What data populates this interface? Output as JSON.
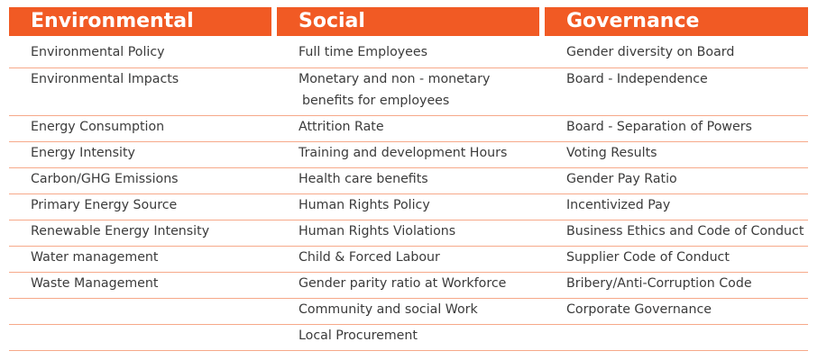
{
  "headers": {
    "environmental": "Environmental",
    "social": "Social",
    "governance": "Governance"
  },
  "rows": [
    {
      "env": "Environmental Policy",
      "soc": "Full time Employees",
      "soc2": "",
      "gov": "Gender diversity on  Board"
    },
    {
      "env": "Environmental Impacts",
      "soc": "Monetary and non - monetary",
      "soc2": "benefits for employees",
      "gov": "Board - Independence"
    },
    {
      "env": "Energy Consumption",
      "soc": "Attrition Rate",
      "soc2": "",
      "gov": "Board - Separation of Powers"
    },
    {
      "env": "Energy Intensity",
      "soc": "Training and development  Hours",
      "soc2": "",
      "gov": "Voting Results"
    },
    {
      "env": "Carbon/GHG Emissions",
      "soc": "Health care benefits",
      "soc2": "",
      "gov": "Gender Pay Ratio"
    },
    {
      "env": "Primary Energy Source",
      "soc": "Human Rights Policy",
      "soc2": "",
      "gov": "Incentivized Pay"
    },
    {
      "env": "Renewable Energy Intensity",
      "soc": "Human Rights Violations",
      "soc2": "",
      "gov": "Business Ethics and Code of Conduct"
    },
    {
      "env": "Water management",
      "soc": "Child & Forced Labour",
      "soc2": "",
      "gov": "Supplier Code of Conduct"
    },
    {
      "env": "Waste Management",
      "soc": "Gender parity ratio at Workforce",
      "soc2": "",
      "gov": "Bribery/Anti-Corruption Code"
    },
    {
      "env": "",
      "soc": "Community and social Work",
      "soc2": "",
      "gov": "Corporate Governance"
    },
    {
      "env": "",
      "soc": "Local Procurement",
      "soc2": "",
      "gov": ""
    }
  ]
}
